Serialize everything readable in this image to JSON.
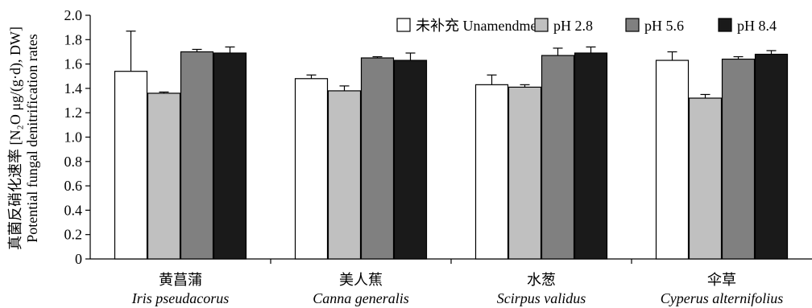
{
  "chart_data": {
    "type": "bar",
    "ylabel_cn": "真菌反硝化速率 [N₂O μg/(g·d), DW]",
    "ylabel_en": "Potential fungal denitrification rates",
    "ylim": [
      0,
      2.0
    ],
    "yticks": [
      "0",
      "0.2",
      "0.4",
      "0.6",
      "0.8",
      "1.0",
      "1.2",
      "1.4",
      "1.6",
      "1.8",
      "2.0"
    ],
    "categories": [
      {
        "cn": "黄菖蒲",
        "en": "Iris pseudacorus"
      },
      {
        "cn": "美人蕉",
        "en": "Canna generalis"
      },
      {
        "cn": "水葱",
        "en": "Scirpus validus"
      },
      {
        "cn": "伞草",
        "en": "Cyperus alternifolius"
      }
    ],
    "series": [
      {
        "name": "未补充 Unamendment",
        "color": "#ffffff",
        "values": [
          1.54,
          1.48,
          1.43,
          1.63
        ],
        "errors": [
          0.33,
          0.03,
          0.08,
          0.07
        ]
      },
      {
        "name": "pH 2.8",
        "color": "#c0c0c0",
        "values": [
          1.36,
          1.38,
          1.41,
          1.32
        ],
        "errors": [
          0.01,
          0.04,
          0.02,
          0.03
        ]
      },
      {
        "name": "pH 5.6",
        "color": "#808080",
        "values": [
          1.7,
          1.65,
          1.67,
          1.64
        ],
        "errors": [
          0.02,
          0.01,
          0.06,
          0.02
        ]
      },
      {
        "name": "pH 8.4",
        "color": "#1a1a1a",
        "values": [
          1.69,
          1.63,
          1.69,
          1.68
        ],
        "errors": [
          0.05,
          0.06,
          0.05,
          0.03
        ]
      }
    ],
    "legend_position": "top-right",
    "grid": false
  }
}
